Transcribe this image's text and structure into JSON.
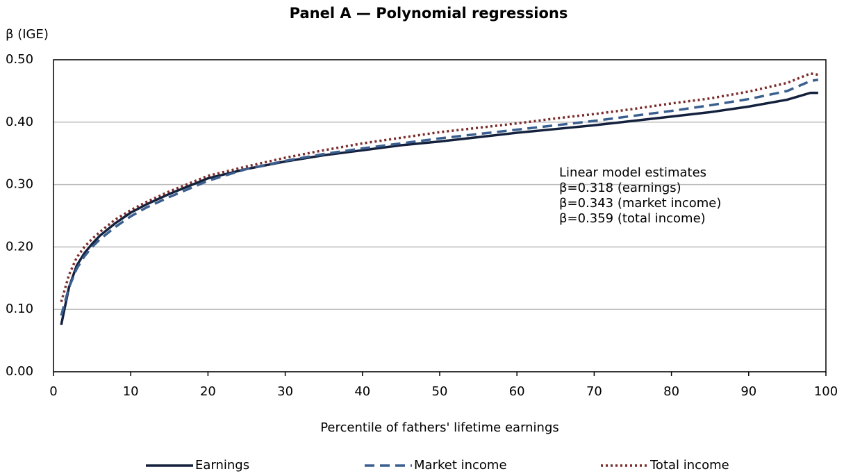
{
  "chart_data": {
    "type": "line",
    "title": "Panel A — Polynomial regressions",
    "y_label": "β (IGE)",
    "x_label": "Percentile of fathers' lifetime earnings",
    "annotation": [
      "Linear model estimates",
      "β=0.318 (earnings)",
      "β=0.343 (market income)",
      "β=0.359 (total income)"
    ],
    "xlim": [
      0,
      100
    ],
    "xticks": [
      0,
      10,
      20,
      30,
      40,
      50,
      60,
      70,
      80,
      90,
      100
    ],
    "ylim": [
      0,
      0.5
    ],
    "yticks": [
      {
        "value": 0,
        "label": "0.00"
      },
      {
        "value": 0.1,
        "label": "0.10"
      },
      {
        "value": 0.2,
        "label": "0.20"
      },
      {
        "value": 0.3,
        "label": "0.30"
      },
      {
        "value": 0.4,
        "label": "0.40"
      },
      {
        "value": 0.5,
        "label": "0.50"
      }
    ],
    "grid": true,
    "legend": "bottom",
    "x": [
      1,
      2,
      3,
      4,
      5,
      6,
      8,
      10,
      12,
      15,
      20,
      25,
      30,
      35,
      40,
      45,
      50,
      55,
      60,
      65,
      70,
      75,
      80,
      85,
      90,
      95,
      98,
      99
    ],
    "series": [
      {
        "name": "Earnings",
        "color": "#14213d",
        "line_style": "solid",
        "values": [
          0.075,
          0.135,
          0.17,
          0.19,
          0.205,
          0.218,
          0.238,
          0.255,
          0.268,
          0.285,
          0.31,
          0.325,
          0.337,
          0.347,
          0.355,
          0.363,
          0.369,
          0.376,
          0.383,
          0.389,
          0.395,
          0.402,
          0.409,
          0.416,
          0.425,
          0.436,
          0.447,
          0.447
        ]
      },
      {
        "name": "Market income",
        "color": "#3a5f8f",
        "line_style": "dashed",
        "values": [
          0.09,
          0.135,
          0.165,
          0.185,
          0.2,
          0.212,
          0.232,
          0.249,
          0.263,
          0.28,
          0.306,
          0.325,
          0.338,
          0.349,
          0.358,
          0.366,
          0.374,
          0.381,
          0.388,
          0.395,
          0.402,
          0.41,
          0.418,
          0.427,
          0.437,
          0.45,
          0.466,
          0.468
        ]
      },
      {
        "name": "Total income",
        "color": "#7b2a2a",
        "line_style": "dotted",
        "values": [
          0.112,
          0.155,
          0.183,
          0.2,
          0.213,
          0.224,
          0.244,
          0.259,
          0.272,
          0.289,
          0.314,
          0.329,
          0.343,
          0.355,
          0.366,
          0.375,
          0.384,
          0.391,
          0.398,
          0.406,
          0.413,
          0.421,
          0.43,
          0.438,
          0.449,
          0.463,
          0.478,
          0.476
        ]
      }
    ]
  }
}
